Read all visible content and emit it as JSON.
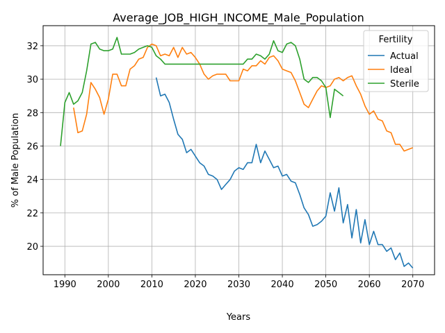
{
  "chart_data": {
    "type": "line",
    "title": "Average_JOB_HIGH_INCOME_Male_Population",
    "xlabel": "Years",
    "ylabel": "% of Male Population",
    "xlim": [
      1985,
      2075
    ],
    "ylim": [
      18.3,
      33.2
    ],
    "xticks": [
      1990,
      2000,
      2010,
      2020,
      2030,
      2040,
      2050,
      2060,
      2070
    ],
    "yticks": [
      20,
      22,
      24,
      26,
      28,
      30,
      32
    ],
    "grid": true,
    "legend": {
      "title": "Fertility",
      "placement": "upper right"
    },
    "series": [
      {
        "name": "Actual",
        "color": "#1f77b4",
        "x": [
          2011,
          2012,
          2013,
          2014,
          2015,
          2016,
          2017,
          2018,
          2019,
          2020,
          2021,
          2022,
          2023,
          2024,
          2025,
          2026,
          2027,
          2028,
          2029,
          2030,
          2031,
          2032,
          2033,
          2034,
          2035,
          2036,
          2037,
          2038,
          2039,
          2040,
          2041,
          2042,
          2043,
          2044,
          2045,
          2046,
          2047,
          2048,
          2049,
          2050,
          2051,
          2052,
          2053,
          2054,
          2055,
          2056,
          2057,
          2058,
          2059,
          2060,
          2061,
          2062,
          2063,
          2064,
          2065,
          2066,
          2067,
          2068,
          2069,
          2070
        ],
        "y": [
          30.1,
          29.0,
          29.1,
          28.6,
          27.6,
          26.7,
          26.4,
          25.6,
          25.8,
          25.4,
          25.0,
          24.8,
          24.3,
          24.2,
          24.0,
          23.4,
          23.7,
          24.0,
          24.5,
          24.7,
          24.6,
          25.0,
          25.0,
          26.1,
          25.0,
          25.7,
          25.2,
          24.7,
          24.8,
          24.2,
          24.3,
          23.9,
          23.8,
          23.1,
          22.3,
          21.9,
          21.2,
          21.3,
          21.5,
          21.8,
          23.2,
          22.1,
          23.5,
          21.4,
          22.5,
          20.5,
          22.2,
          20.2,
          21.6,
          20.1,
          20.9,
          20.1,
          20.1,
          19.7,
          19.9,
          19.2,
          19.6,
          18.8,
          19.0,
          18.7
        ]
      },
      {
        "name": "Ideal",
        "color": "#ff7f0e",
        "x": [
          1992,
          1993,
          1994,
          1995,
          1996,
          1997,
          1998,
          1999,
          2000,
          2001,
          2002,
          2003,
          2004,
          2005,
          2006,
          2007,
          2008,
          2009,
          2010,
          2011,
          2012,
          2013,
          2014,
          2015,
          2016,
          2017,
          2018,
          2019,
          2020,
          2021,
          2022,
          2023,
          2024,
          2025,
          2026,
          2027,
          2028,
          2029,
          2030,
          2031,
          2032,
          2033,
          2034,
          2035,
          2036,
          2037,
          2038,
          2039,
          2040,
          2041,
          2042,
          2043,
          2044,
          2045,
          2046,
          2047,
          2048,
          2049,
          2050,
          2051,
          2052,
          2053,
          2054,
          2055,
          2056,
          2057,
          2058,
          2059,
          2060,
          2061,
          2062,
          2063,
          2064,
          2065,
          2066,
          2067,
          2068,
          2069,
          2070
        ],
        "y": [
          28.3,
          26.8,
          26.9,
          27.9,
          29.8,
          29.4,
          28.9,
          27.9,
          28.8,
          30.3,
          30.3,
          29.6,
          29.6,
          30.6,
          30.8,
          31.2,
          31.3,
          31.9,
          32.1,
          32.0,
          31.4,
          31.5,
          31.4,
          31.9,
          31.3,
          31.9,
          31.5,
          31.6,
          31.3,
          30.9,
          30.3,
          30.0,
          30.2,
          30.3,
          30.3,
          30.3,
          29.9,
          29.9,
          29.9,
          30.6,
          30.5,
          30.8,
          30.8,
          31.1,
          30.9,
          31.3,
          31.4,
          31.1,
          30.6,
          30.5,
          30.4,
          29.9,
          29.2,
          28.5,
          28.3,
          28.8,
          29.3,
          29.6,
          29.5,
          29.6,
          30.0,
          30.1,
          29.9,
          30.1,
          30.2,
          29.6,
          29.1,
          28.4,
          27.9,
          28.1,
          27.6,
          27.5,
          26.9,
          26.8,
          26.1,
          26.1,
          25.7,
          25.8,
          25.9
        ]
      },
      {
        "name": "Sterile",
        "color": "#2ca02c",
        "x": [
          1989,
          1990,
          1991,
          1992,
          1993,
          1994,
          1995,
          1996,
          1997,
          1998,
          1999,
          2000,
          2001,
          2002,
          2003,
          2004,
          2005,
          2006,
          2007,
          2008,
          2009,
          2010,
          2011,
          2012,
          2013,
          2014,
          2015,
          2016,
          2017,
          2018,
          2019,
          2020,
          2021,
          2022,
          2023,
          2024,
          2025,
          2026,
          2027,
          2028,
          2029,
          2030,
          2031,
          2032,
          2033,
          2034,
          2035,
          2036,
          2037,
          2038,
          2039,
          2040,
          2041,
          2042,
          2043,
          2044,
          2045,
          2046,
          2047,
          2048,
          2049,
          2050,
          2051,
          2052,
          2053,
          2054
        ],
        "y": [
          26.0,
          28.6,
          29.2,
          28.5,
          28.7,
          29.2,
          30.5,
          32.1,
          32.2,
          31.8,
          31.7,
          31.7,
          31.8,
          32.5,
          31.5,
          31.5,
          31.5,
          31.6,
          31.8,
          31.9,
          32.0,
          31.9,
          31.4,
          31.2,
          30.9,
          30.9,
          30.9,
          30.9,
          30.9,
          30.9,
          30.9,
          30.9,
          30.9,
          30.9,
          30.9,
          30.9,
          30.9,
          30.9,
          30.9,
          30.9,
          30.9,
          30.9,
          30.9,
          31.2,
          31.2,
          31.5,
          31.4,
          31.2,
          31.5,
          32.3,
          31.7,
          31.6,
          32.1,
          32.2,
          32.0,
          31.2,
          30.0,
          29.8,
          30.1,
          30.1,
          29.9,
          29.5,
          27.7,
          29.4,
          29.2,
          29.0
        ]
      }
    ]
  }
}
